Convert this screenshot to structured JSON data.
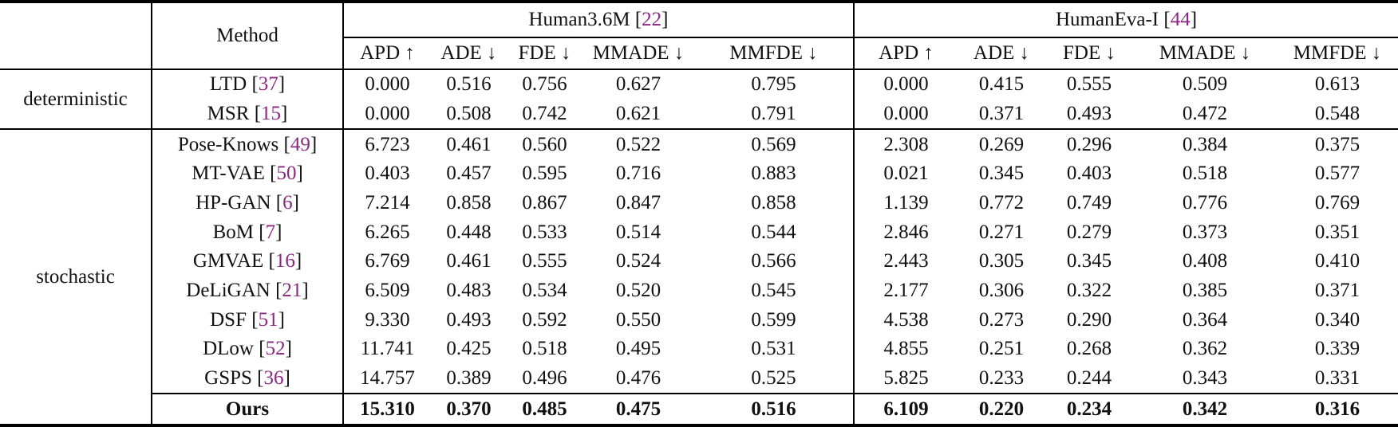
{
  "header": {
    "method_label": "Method",
    "datasets": [
      {
        "name": "Human3.6M",
        "cite": "22"
      },
      {
        "name": "HumanEva-I",
        "cite": "44"
      }
    ],
    "metrics": [
      "APD ↑",
      "ADE ↓",
      "FDE ↓",
      "MMADE ↓",
      "MMFDE ↓"
    ]
  },
  "punct": {
    "open": "[",
    "close": "]"
  },
  "colors": {
    "citation": "#8A2781",
    "text": "#111111",
    "rule": "#000000"
  },
  "groups": [
    {
      "category": "deterministic",
      "rows": [
        {
          "method": "LTD",
          "cite": "37",
          "h36m": [
            "0.000",
            "0.516",
            "0.756",
            "0.627",
            "0.795"
          ],
          "humaneva": [
            "0.000",
            "0.415",
            "0.555",
            "0.509",
            "0.613"
          ]
        },
        {
          "method": "MSR",
          "cite": "15",
          "h36m": [
            "0.000",
            "0.508",
            "0.742",
            "0.621",
            "0.791"
          ],
          "humaneva": [
            "0.000",
            "0.371",
            "0.493",
            "0.472",
            "0.548"
          ]
        }
      ]
    },
    {
      "category": "stochastic",
      "rows": [
        {
          "method": "Pose-Knows",
          "cite": "49",
          "h36m": [
            "6.723",
            "0.461",
            "0.560",
            "0.522",
            "0.569"
          ],
          "humaneva": [
            "2.308",
            "0.269",
            "0.296",
            "0.384",
            "0.375"
          ]
        },
        {
          "method": "MT-VAE",
          "cite": "50",
          "h36m": [
            "0.403",
            "0.457",
            "0.595",
            "0.716",
            "0.883"
          ],
          "humaneva": [
            "0.021",
            "0.345",
            "0.403",
            "0.518",
            "0.577"
          ]
        },
        {
          "method": "HP-GAN",
          "cite": "6",
          "h36m": [
            "7.214",
            "0.858",
            "0.867",
            "0.847",
            "0.858"
          ],
          "humaneva": [
            "1.139",
            "0.772",
            "0.749",
            "0.776",
            "0.769"
          ]
        },
        {
          "method": "BoM",
          "cite": "7",
          "h36m": [
            "6.265",
            "0.448",
            "0.533",
            "0.514",
            "0.544"
          ],
          "humaneva": [
            "2.846",
            "0.271",
            "0.279",
            "0.373",
            "0.351"
          ]
        },
        {
          "method": "GMVAE",
          "cite": "16",
          "h36m": [
            "6.769",
            "0.461",
            "0.555",
            "0.524",
            "0.566"
          ],
          "humaneva": [
            "2.443",
            "0.305",
            "0.345",
            "0.408",
            "0.410"
          ]
        },
        {
          "method": "DeLiGAN",
          "cite": "21",
          "h36m": [
            "6.509",
            "0.483",
            "0.534",
            "0.520",
            "0.545"
          ],
          "humaneva": [
            "2.177",
            "0.306",
            "0.322",
            "0.385",
            "0.371"
          ]
        },
        {
          "method": "DSF",
          "cite": "51",
          "h36m": [
            "9.330",
            "0.493",
            "0.592",
            "0.550",
            "0.599"
          ],
          "humaneva": [
            "4.538",
            "0.273",
            "0.290",
            "0.364",
            "0.340"
          ]
        },
        {
          "method": "DLow",
          "cite": "52",
          "h36m": [
            "11.741",
            "0.425",
            "0.518",
            "0.495",
            "0.531"
          ],
          "humaneva": [
            "4.855",
            "0.251",
            "0.268",
            "0.362",
            "0.339"
          ]
        },
        {
          "method": "GSPS",
          "cite": "36",
          "h36m": [
            "14.757",
            "0.389",
            "0.496",
            "0.476",
            "0.525"
          ],
          "humaneva": [
            "5.825",
            "0.233",
            "0.244",
            "0.343",
            "0.331"
          ]
        },
        {
          "method": "Ours",
          "cite": null,
          "bold": true,
          "separator_above": true,
          "h36m": [
            "15.310",
            "0.370",
            "0.485",
            "0.475",
            "0.516"
          ],
          "humaneva": [
            "6.109",
            "0.220",
            "0.234",
            "0.342",
            "0.316"
          ]
        }
      ]
    }
  ]
}
